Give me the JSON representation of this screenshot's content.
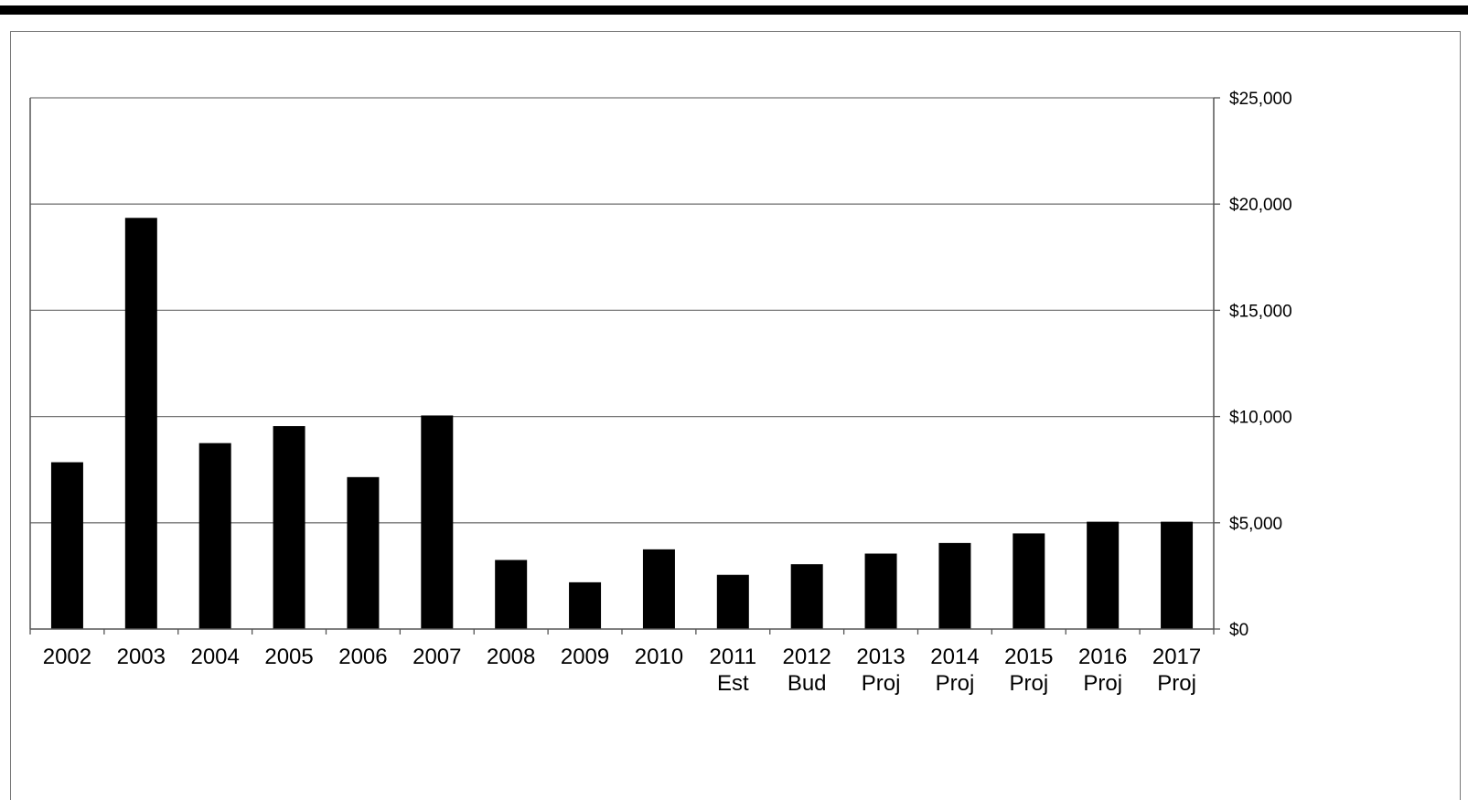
{
  "chart_data": {
    "type": "bar",
    "title": "",
    "xlabel": "",
    "ylabel": "",
    "categories": [
      [
        "2002"
      ],
      [
        "2003"
      ],
      [
        "2004"
      ],
      [
        "2005"
      ],
      [
        "2006"
      ],
      [
        "2007"
      ],
      [
        "2008"
      ],
      [
        "2009"
      ],
      [
        "2010"
      ],
      [
        "2011",
        "Est"
      ],
      [
        "2012",
        "Bud"
      ],
      [
        "2013",
        "Proj"
      ],
      [
        "2014",
        "Proj"
      ],
      [
        "2015",
        "Proj"
      ],
      [
        "2016",
        "Proj"
      ],
      [
        "2017",
        "Proj"
      ]
    ],
    "values": [
      7850,
      19350,
      8750,
      9550,
      7150,
      10050,
      3250,
      2200,
      3750,
      2550,
      3050,
      3550,
      4050,
      4500,
      5050,
      5050
    ],
    "ylim": [
      0,
      25000
    ],
    "yticks": [
      0,
      5000,
      10000,
      15000,
      20000,
      25000
    ],
    "ytick_labels": [
      "$0",
      "$5,000",
      "$10,000",
      "$15,000",
      "$20,000",
      "$25,000"
    ],
    "y_axis_side": "right",
    "grid": true,
    "legend": "none",
    "bar_color": "#000000"
  }
}
